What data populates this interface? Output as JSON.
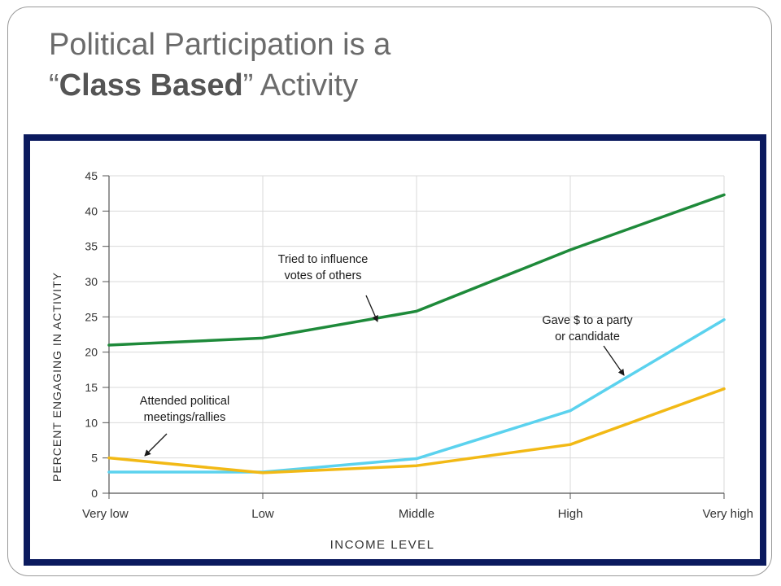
{
  "slide": {
    "title_line1": "Political Participation is a",
    "title_open_quote": "“",
    "title_bold": "Class Based",
    "title_close_quote": "”",
    "title_rest": " Activity"
  },
  "colors": {
    "frame_border": "#0b1a5e",
    "grid": "#d9d9d9",
    "axis": "#555555",
    "annotation": "#1a1a1a"
  },
  "chart_data": {
    "type": "line",
    "title": "",
    "xlabel": "INCOME LEVEL",
    "ylabel": "PERCENT ENGAGING IN ACTIVITY",
    "categories": [
      "Very low",
      "Low",
      "Middle",
      "High",
      "Very high"
    ],
    "ylim": [
      0,
      45
    ],
    "yticks": [
      0,
      5,
      10,
      15,
      20,
      25,
      30,
      35,
      40,
      45
    ],
    "grid": "vertical and horizontal light lines",
    "series": [
      {
        "name": "Tried to influence votes of others",
        "color": "#1e8a3a",
        "values": [
          21,
          22,
          25.8,
          34.5,
          42.3
        ]
      },
      {
        "name": "Gave $ to a party or candidate",
        "color": "#5bd2ee",
        "values": [
          3,
          3,
          4.9,
          11.7,
          24.6
        ]
      },
      {
        "name": "Attended political meetings/rallies",
        "color": "#f2b915",
        "values": [
          5,
          2.9,
          3.9,
          6.9,
          14.8
        ]
      }
    ],
    "annotations": [
      {
        "lines": [
          "Tried to influence",
          "votes of others"
        ],
        "series": 0
      },
      {
        "lines": [
          "Gave $ to a party",
          "or candidate"
        ],
        "series": 1
      },
      {
        "lines": [
          "Attended political",
          "meetings/rallies"
        ],
        "series": 2
      }
    ]
  }
}
